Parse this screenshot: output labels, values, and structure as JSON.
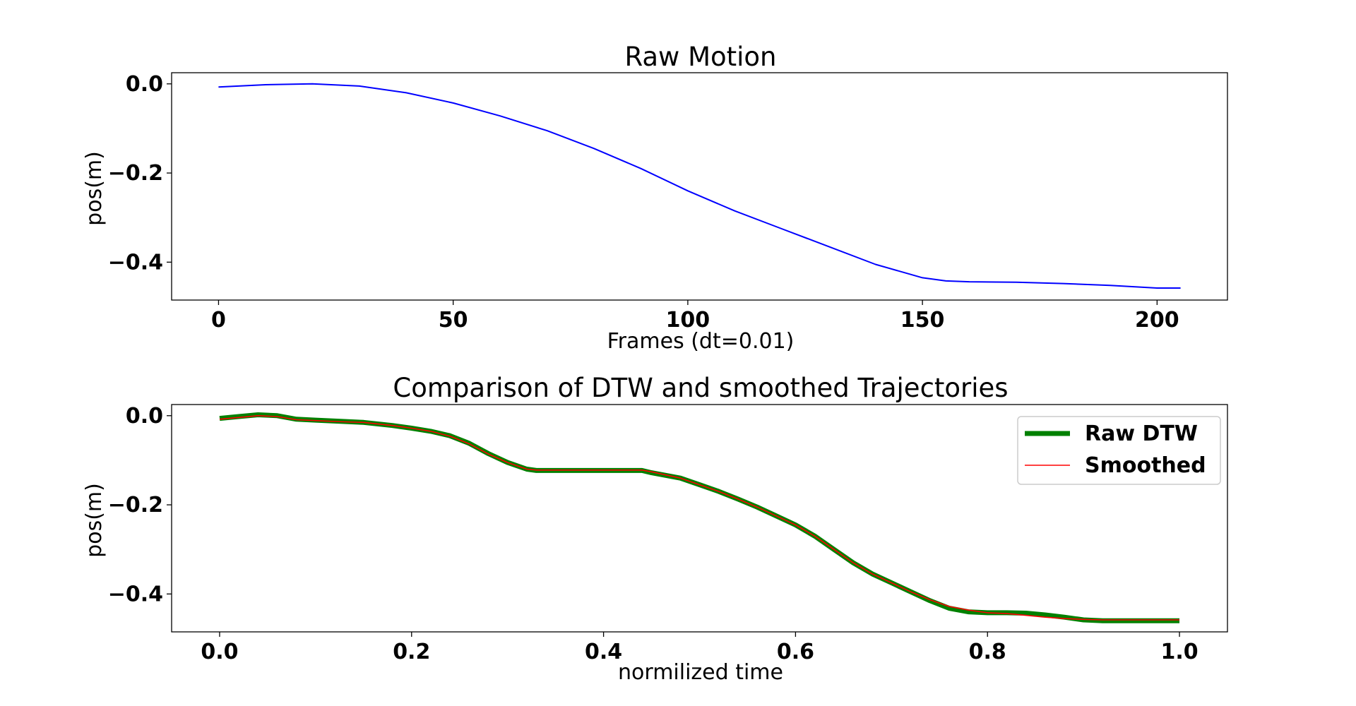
{
  "chart_data": [
    {
      "type": "line",
      "title": "Raw Motion",
      "xlabel": "Frames (dt=0.01)",
      "ylabel": "pos(m)",
      "xlim": [
        -10,
        215
      ],
      "ylim": [
        -0.485,
        0.025
      ],
      "xticks": [
        0,
        50,
        100,
        150,
        200
      ],
      "xtick_labels": [
        "0",
        "50",
        "100",
        "150",
        "200"
      ],
      "yticks": [
        0.0,
        -0.2,
        -0.4
      ],
      "ytick_labels": [
        "0.0",
        "−0.2",
        "−0.4"
      ],
      "grid": false,
      "legend": "none",
      "series": [
        {
          "color": "#0000ff",
          "line_width": 2,
          "x": [
            0,
            10,
            20,
            30,
            40,
            50,
            60,
            70,
            80,
            90,
            100,
            110,
            120,
            130,
            140,
            150,
            155,
            160,
            170,
            180,
            190,
            200,
            205
          ],
          "y": [
            -0.007,
            -0.002,
            0.0,
            -0.005,
            -0.02,
            -0.043,
            -0.072,
            -0.105,
            -0.145,
            -0.19,
            -0.24,
            -0.285,
            -0.325,
            -0.365,
            -0.405,
            -0.435,
            -0.442,
            -0.444,
            -0.445,
            -0.448,
            -0.452,
            -0.458,
            -0.458
          ]
        }
      ]
    },
    {
      "type": "line",
      "title": "Comparison of DTW and smoothed Trajectories",
      "xlabel": "normilized time",
      "ylabel": "pos(m)",
      "xlim": [
        -0.05,
        1.05
      ],
      "ylim": [
        -0.485,
        0.025
      ],
      "xticks": [
        0.0,
        0.2,
        0.4,
        0.6,
        0.8,
        1.0
      ],
      "xtick_labels": [
        "0.0",
        "0.2",
        "0.4",
        "0.6",
        "0.8",
        "1.0"
      ],
      "yticks": [
        0.0,
        -0.2,
        -0.4
      ],
      "ytick_labels": [
        "0.0",
        "−0.2",
        "−0.4"
      ],
      "grid": false,
      "legend": "top-right",
      "series": [
        {
          "name": "Raw DTW",
          "color": "#008000",
          "line_width": 7,
          "x": [
            0.0,
            0.02,
            0.04,
            0.06,
            0.08,
            0.1,
            0.12,
            0.15,
            0.18,
            0.2,
            0.22,
            0.24,
            0.26,
            0.28,
            0.3,
            0.32,
            0.33,
            0.44,
            0.45,
            0.48,
            0.5,
            0.52,
            0.54,
            0.56,
            0.58,
            0.6,
            0.62,
            0.64,
            0.66,
            0.68,
            0.7,
            0.72,
            0.74,
            0.76,
            0.78,
            0.8,
            0.82,
            0.84,
            0.86,
            0.88,
            0.9,
            0.92,
            0.95,
            1.0
          ],
          "y": [
            -0.006,
            -0.002,
            0.002,
            0.0,
            -0.008,
            -0.01,
            -0.012,
            -0.015,
            -0.022,
            -0.028,
            -0.035,
            -0.045,
            -0.062,
            -0.085,
            -0.105,
            -0.12,
            -0.123,
            -0.123,
            -0.128,
            -0.14,
            -0.155,
            -0.17,
            -0.187,
            -0.205,
            -0.225,
            -0.245,
            -0.27,
            -0.3,
            -0.33,
            -0.355,
            -0.375,
            -0.395,
            -0.415,
            -0.432,
            -0.44,
            -0.442,
            -0.442,
            -0.443,
            -0.447,
            -0.452,
            -0.458,
            -0.46,
            -0.46,
            -0.46
          ]
        },
        {
          "name": "Smoothed",
          "color": "#ff0000",
          "line_width": 1.6,
          "x": [
            0.0,
            0.02,
            0.04,
            0.06,
            0.08,
            0.1,
            0.12,
            0.15,
            0.18,
            0.2,
            0.22,
            0.24,
            0.26,
            0.28,
            0.3,
            0.32,
            0.33,
            0.44,
            0.45,
            0.48,
            0.5,
            0.52,
            0.54,
            0.56,
            0.58,
            0.6,
            0.62,
            0.64,
            0.66,
            0.68,
            0.7,
            0.72,
            0.74,
            0.76,
            0.78,
            0.8,
            0.82,
            0.84,
            0.86,
            0.88,
            0.9,
            0.92,
            0.95,
            1.0
          ],
          "y": [
            -0.008,
            -0.004,
            0.0,
            -0.002,
            -0.009,
            -0.011,
            -0.013,
            -0.015,
            -0.022,
            -0.028,
            -0.035,
            -0.046,
            -0.063,
            -0.086,
            -0.105,
            -0.12,
            -0.122,
            -0.122,
            -0.126,
            -0.14,
            -0.155,
            -0.17,
            -0.187,
            -0.205,
            -0.225,
            -0.245,
            -0.27,
            -0.3,
            -0.33,
            -0.355,
            -0.375,
            -0.395,
            -0.413,
            -0.428,
            -0.436,
            -0.442,
            -0.444,
            -0.448,
            -0.452,
            -0.455,
            -0.457,
            -0.458,
            -0.458,
            -0.458
          ]
        }
      ]
    }
  ]
}
